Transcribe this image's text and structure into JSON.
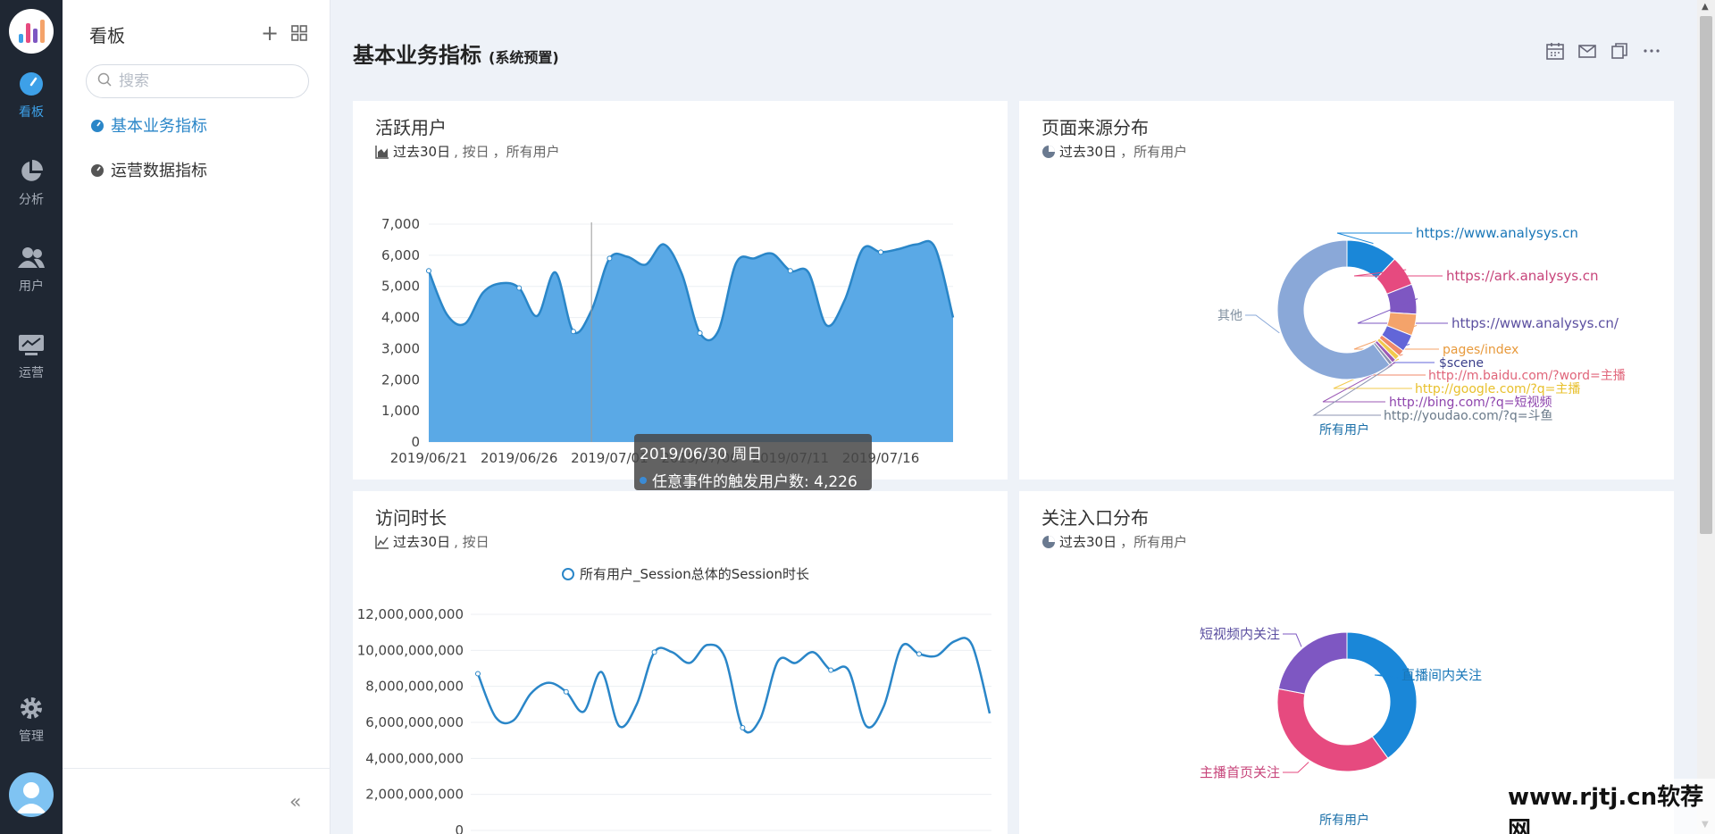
{
  "rail": {
    "items": [
      {
        "label": "看板",
        "icon": "dashboard-icon",
        "active": true
      },
      {
        "label": "分析",
        "icon": "pie-chart-icon"
      },
      {
        "label": "用户",
        "icon": "users-icon"
      },
      {
        "label": "运营",
        "icon": "monitor-icon"
      },
      {
        "label": "管理",
        "icon": "gear-icon"
      }
    ]
  },
  "sidebar": {
    "title": "看板",
    "search_placeholder": "搜索",
    "items": [
      {
        "label": "基本业务指标",
        "active": true
      },
      {
        "label": "运营数据指标"
      }
    ]
  },
  "page": {
    "title": "基本业务指标",
    "subtitle": "(系统预置)"
  },
  "cards": {
    "active_users": {
      "title": "活跃用户",
      "sub_1": "过去30日",
      "sub_2": ", 按日",
      "sub_3": "，所有用户"
    },
    "page_source": {
      "title": "页面来源分布",
      "sub_1": "过去30日",
      "sub_2": "，所有用户",
      "center_label": "所有用户"
    },
    "visit_duration": {
      "title": "访问时长",
      "sub_1": "过去30日",
      "sub_2": ", 按日",
      "legend": "所有用户_Session总体的Session时长"
    },
    "follow_entry": {
      "title": "关注入口分布",
      "sub_1": "过去30日",
      "sub_2": "，所有用户",
      "center_label": "所有用户"
    }
  },
  "tooltip": {
    "date": "2019/06/30 周日",
    "text": "任意事件的触发用户数: 4,226"
  },
  "watermark": "www.rjtj.cn软荐网",
  "colors": {
    "accent": "#2a86c8",
    "area_fill": "#5aa9e6",
    "line": "#2a86c8",
    "rail_bg": "#1f2733"
  },
  "chart_data": [
    {
      "type": "area",
      "name": "active_users",
      "x_ticks": [
        "2019/06/21",
        "2019/06/26",
        "2019/07/01",
        "2019/07/06",
        "2019/07/11",
        "2019/07/16"
      ],
      "y_ticks": [
        "0",
        "1,000",
        "2,000",
        "3,000",
        "4,000",
        "5,000",
        "6,000",
        "7,000"
      ],
      "ylim": [
        0,
        7000
      ],
      "x_dates": [
        "06/21",
        "06/22",
        "06/23",
        "06/24",
        "06/25",
        "06/26",
        "06/27",
        "06/28",
        "06/29",
        "06/30",
        "07/01",
        "07/02",
        "07/03",
        "07/04",
        "07/05",
        "07/06",
        "07/07",
        "07/08",
        "07/09",
        "07/10",
        "07/11",
        "07/12",
        "07/13",
        "07/14",
        "07/15",
        "07/16",
        "07/17",
        "07/18",
        "07/19",
        "07/20"
      ],
      "values": [
        5500,
        4100,
        3800,
        4800,
        5100,
        4950,
        4050,
        5450,
        3550,
        4226,
        5900,
        5950,
        5700,
        6350,
        5400,
        3500,
        3550,
        5750,
        5900,
        6050,
        5500,
        5450,
        3750,
        4550,
        6200,
        6100,
        6200,
        6350,
        6250,
        4000
      ],
      "grid": true
    },
    {
      "type": "pie",
      "name": "page_source",
      "labels": [
        "https://www.analysys.cn",
        "https://ark.analysys.cn",
        "https://www.analysys.cn/",
        "pages/index",
        "$scene",
        "http://m.baidu.com/?word=主播",
        "http://google.com/?q=主播",
        "http://bing.com/?q=短视频",
        "http://youdao.com/?q=斗鱼",
        "其他"
      ],
      "values": [
        12,
        7,
        7,
        5,
        4,
        1.5,
        1.2,
        1,
        0.8,
        60.5
      ],
      "colors": [
        "#1a87d8",
        "#e64a7f",
        "#7e57c2",
        "#f4a36a",
        "#6266d8",
        "#f08a6a",
        "#f2c94c",
        "#9b59b6",
        "#8c93b0",
        "#8aa8d8"
      ],
      "label_colors": [
        "#1a77b8",
        "#c7447a",
        "#5b4fa0",
        "#e89a3c",
        "#3a3f8a",
        "#e0657a",
        "#e8c02c",
        "#8e44ad",
        "#6a7a8a",
        "#8090a0"
      ]
    },
    {
      "type": "line",
      "name": "visit_duration",
      "y_ticks": [
        "0",
        "2,000,000,000",
        "4,000,000,000",
        "6,000,000,000",
        "8,000,000,000",
        "10,000,000,000",
        "12,000,000,000"
      ],
      "ylim": [
        0,
        12000000000
      ],
      "values": [
        8700000000,
        6300000000,
        6100000000,
        7600000000,
        8200000000,
        7700000000,
        6600000000,
        8800000000,
        5800000000,
        7000000000,
        9900000000,
        9900000000,
        9300000000,
        10300000000,
        9600000000,
        5700000000,
        6200000000,
        9400000000,
        9300000000,
        9900000000,
        8900000000,
        8900000000,
        5800000000,
        6900000000,
        10200000000,
        9800000000,
        9700000000,
        10500000000,
        10300000000,
        6500000000
      ],
      "grid": true
    },
    {
      "type": "pie",
      "name": "follow_entry",
      "labels": [
        "直播间内关注",
        "主播首页关注",
        "短视频内关注"
      ],
      "values": [
        40,
        38,
        22
      ],
      "colors": [
        "#1a87d8",
        "#e64a7f",
        "#7e57c2"
      ],
      "label_colors": [
        "#1a77b8",
        "#c7447a",
        "#5b4fa0"
      ]
    }
  ]
}
